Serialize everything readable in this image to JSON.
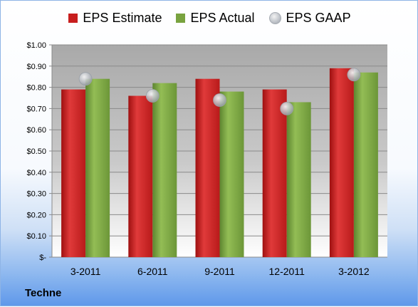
{
  "company": "Techne",
  "colors": {
    "estimate": "#c81e1e",
    "actual": "#79a33f",
    "gaap": "#b9bec6"
  },
  "chart_data": {
    "type": "bar",
    "title": "",
    "xlabel": "",
    "ylabel": "",
    "categories": [
      "3-2011",
      "6-2011",
      "9-2011",
      "12-2011",
      "3-2012"
    ],
    "series": [
      {
        "name": "EPS Estimate",
        "kind": "bar",
        "values": [
          0.79,
          0.76,
          0.84,
          0.79,
          0.89
        ]
      },
      {
        "name": "EPS Actual",
        "kind": "bar",
        "values": [
          0.84,
          0.82,
          0.78,
          0.73,
          0.87
        ]
      },
      {
        "name": "EPS GAAP",
        "kind": "scatter",
        "values": [
          0.84,
          0.76,
          0.74,
          0.7,
          0.86
        ]
      }
    ],
    "ylim": [
      0,
      1.0
    ],
    "yticks": [
      0,
      0.1,
      0.2,
      0.3,
      0.4,
      0.5,
      0.6,
      0.7,
      0.8,
      0.9,
      1.0
    ],
    "ytick_labels": [
      "$-",
      "$0.10",
      "$0.20",
      "$0.30",
      "$0.40",
      "$0.50",
      "$0.60",
      "$0.70",
      "$0.80",
      "$0.90",
      "$1.00"
    ],
    "grid": true,
    "legend_position": "top"
  }
}
